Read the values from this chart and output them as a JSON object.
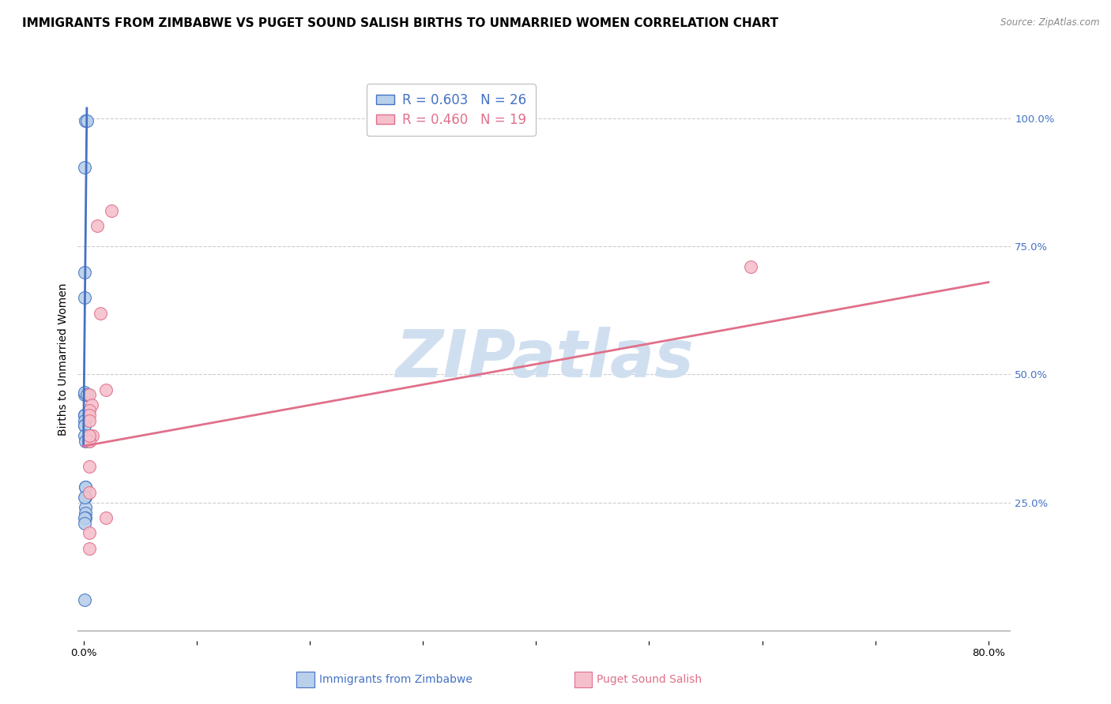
{
  "title": "IMMIGRANTS FROM ZIMBABWE VS PUGET SOUND SALISH BIRTHS TO UNMARRIED WOMEN CORRELATION CHART",
  "source": "Source: ZipAtlas.com",
  "ylabel": "Births to Unmarried Women",
  "xlim": [
    -0.005,
    0.82
  ],
  "ylim": [
    -0.02,
    1.08
  ],
  "xticks": [
    0.0,
    0.1,
    0.2,
    0.3,
    0.4,
    0.5,
    0.6,
    0.7,
    0.8
  ],
  "xticklabels": [
    "0.0%",
    "",
    "",
    "",
    "",
    "",
    "",
    "",
    "80.0%"
  ],
  "yticks_right": [
    0.0,
    0.25,
    0.5,
    0.75,
    1.0
  ],
  "yticklabels_right": [
    "",
    "25.0%",
    "50.0%",
    "75.0%",
    "100.0%"
  ],
  "blue_scatter_x": [
    0.002,
    0.003,
    0.001,
    0.001,
    0.001,
    0.001,
    0.001,
    0.001,
    0.001,
    0.001,
    0.001,
    0.001,
    0.001,
    0.001,
    0.002,
    0.002,
    0.002,
    0.002,
    0.002,
    0.002,
    0.003,
    0.002,
    0.001,
    0.001,
    0.001,
    0.001
  ],
  "blue_scatter_y": [
    0.995,
    0.995,
    0.905,
    0.7,
    0.65,
    0.46,
    0.465,
    0.42,
    0.42,
    0.42,
    0.41,
    0.4,
    0.4,
    0.38,
    0.37,
    0.28,
    0.28,
    0.26,
    0.24,
    0.23,
    0.46,
    0.22,
    0.22,
    0.21,
    0.26,
    0.06
  ],
  "pink_scatter_x": [
    0.025,
    0.012,
    0.015,
    0.005,
    0.007,
    0.005,
    0.005,
    0.005,
    0.008,
    0.005,
    0.005,
    0.005,
    0.005,
    0.005,
    0.59,
    0.005,
    0.02,
    0.02,
    0.005
  ],
  "pink_scatter_y": [
    0.82,
    0.79,
    0.62,
    0.46,
    0.44,
    0.43,
    0.42,
    0.41,
    0.38,
    0.37,
    0.37,
    0.32,
    0.27,
    0.19,
    0.71,
    0.16,
    0.22,
    0.47,
    0.38
  ],
  "blue_line_x": [
    0.0,
    0.003
  ],
  "blue_line_y": [
    0.36,
    1.02
  ],
  "pink_line_x": [
    0.0,
    0.8
  ],
  "pink_line_y": [
    0.36,
    0.68
  ],
  "legend_blue_r": "R = 0.603",
  "legend_blue_n": "N = 26",
  "legend_pink_r": "R = 0.460",
  "legend_pink_n": "N = 19",
  "blue_scatter_color": "#b8d0ea",
  "blue_line_color": "#4472c4",
  "pink_scatter_color": "#f5c0cc",
  "pink_line_color": "#e0708a",
  "watermark_text": "ZIPatlas",
  "watermark_color": "#d0dff0",
  "grid_color": "#c8c8c8",
  "title_fontsize": 11,
  "axis_label_fontsize": 10,
  "tick_fontsize": 9.5,
  "legend_fontsize": 12,
  "scatter_size": 130
}
